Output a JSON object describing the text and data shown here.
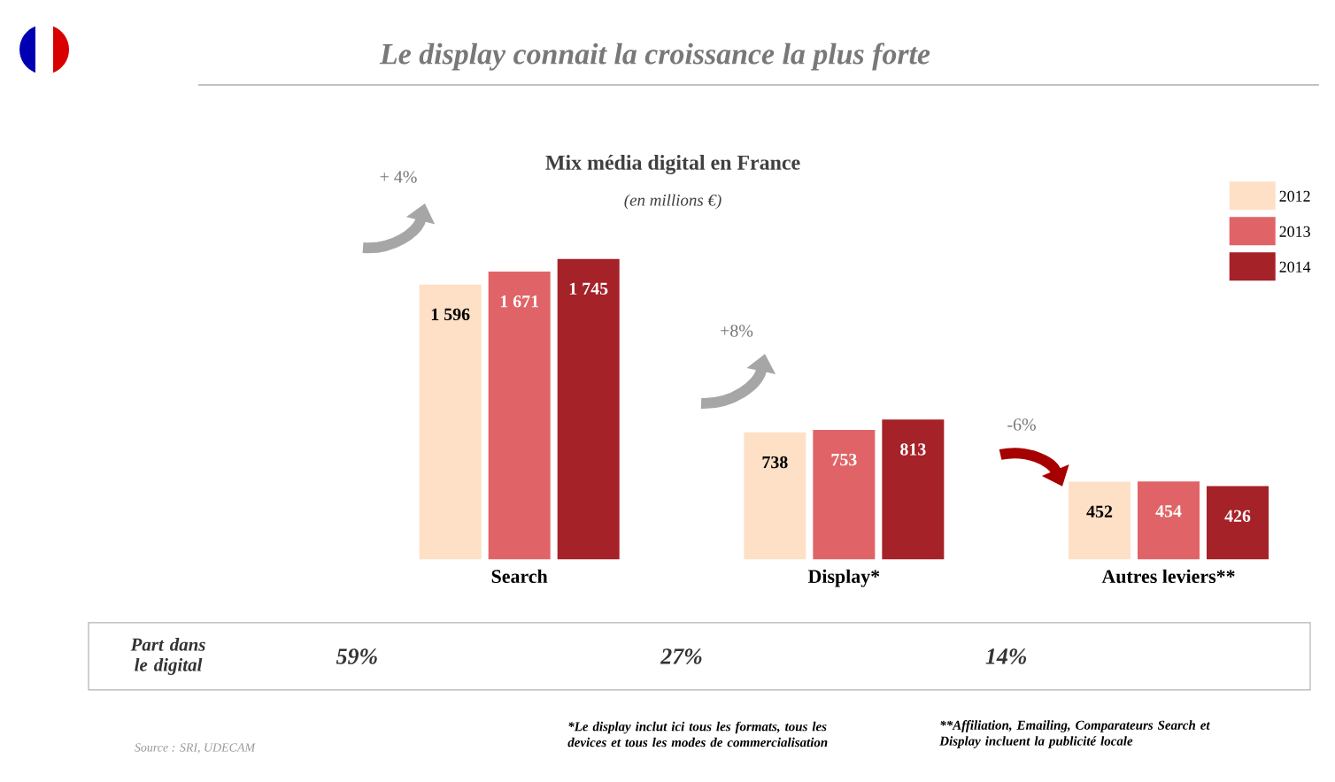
{
  "chart_data": {
    "type": "bar",
    "title": "Le display connait la croissance la plus forte",
    "subtitle": "Mix média digital en France",
    "categories": [
      "Search",
      "Display*",
      "Autres leviers**"
    ],
    "series": [
      {
        "name": "2012",
        "color": "#fde0c6",
        "values": [
          1596,
          738,
          452
        ],
        "value_labels": [
          "1 596",
          "738",
          "452"
        ]
      },
      {
        "name": "2013",
        "color": "#e06467",
        "values": [
          1671,
          753,
          454
        ],
        "value_labels": [
          "1 671",
          "753",
          "454"
        ]
      },
      {
        "name": "2014",
        "color": "#a52229",
        "values": [
          1745,
          813,
          426
        ],
        "value_labels": [
          "1 745",
          "813",
          "426"
        ]
      }
    ],
    "legend": "top right",
    "annotations": [
      "(en millions €)",
      "+ 4%",
      "+8%",
      "-6%",
      "Part dans le digital",
      "59%",
      "27%",
      "14%",
      "Source : SRI, UDECAM",
      "*Le display inclut ici tous les formats, tous les devices et tous les modes de commercialisation",
      "**Affiliation, Emailing, Comparateurs Search et Display incluent la publicité locale"
    ]
  }
}
